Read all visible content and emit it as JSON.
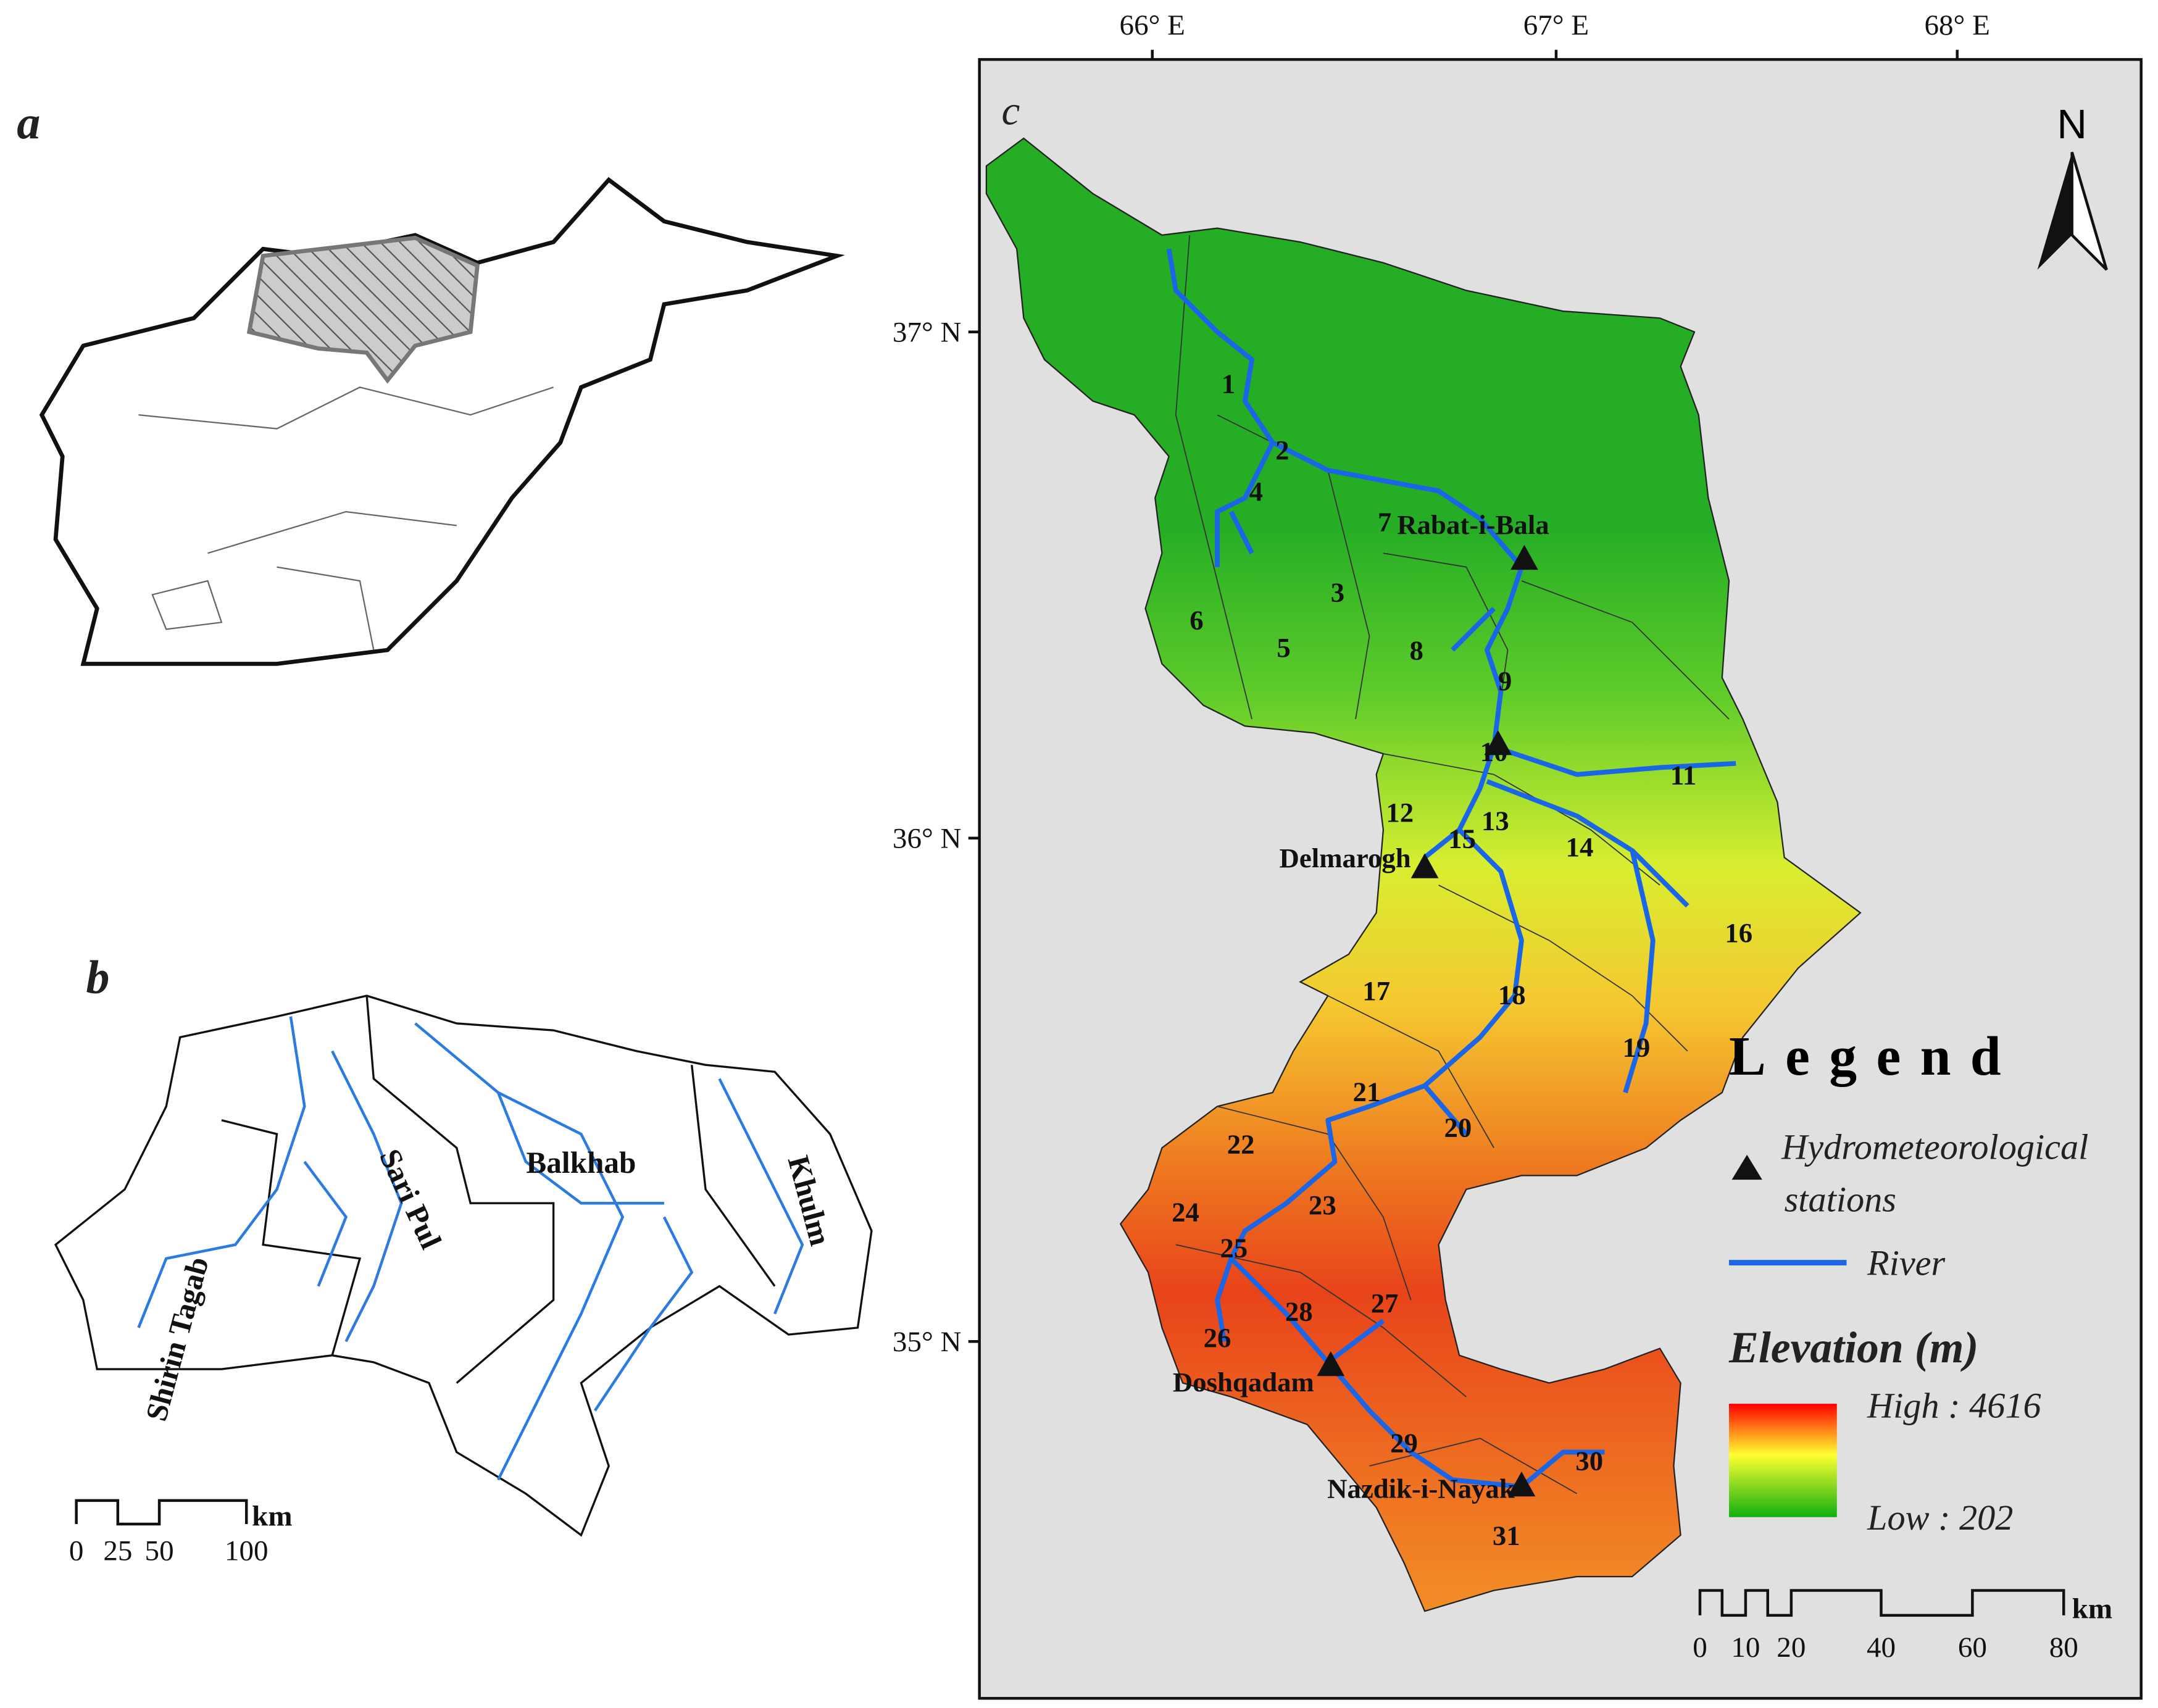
{
  "panels": {
    "a": {
      "label": "a"
    },
    "b": {
      "label": "b",
      "basins": [
        "Shirin Tagab",
        "Sari Pul",
        "Balkhab",
        "Khulm"
      ],
      "scale": {
        "ticks": [
          "0",
          "25",
          "50",
          "100"
        ],
        "unit": "km"
      }
    },
    "c": {
      "label": "c",
      "lon_ticks": [
        "66° E",
        "67° E",
        "68° E"
      ],
      "lat_ticks": [
        "37° N",
        "36° N",
        "35° N"
      ],
      "north": "N",
      "subbasins": [
        "1",
        "2",
        "3",
        "4",
        "5",
        "6",
        "7",
        "8",
        "9",
        "10",
        "11",
        "12",
        "13",
        "14",
        "15",
        "16",
        "17",
        "18",
        "19",
        "20",
        "21",
        "22",
        "23",
        "24",
        "25",
        "26",
        "27",
        "28",
        "29",
        "30",
        "31"
      ],
      "stations": [
        "Rabat-i-Bala",
        "Delmarogh",
        "Doshqadam",
        "Nazdik-i-Nayak"
      ],
      "legend": {
        "title": "Legend",
        "station": "Hydrometeorological stations",
        "river": "River",
        "elevation": "Elevation (m)",
        "high": "High : 4616",
        "low": "Low : 202"
      },
      "scale": {
        "ticks": [
          "0",
          "10",
          "20",
          "40",
          "60",
          "80"
        ],
        "unit": "km"
      }
    }
  }
}
